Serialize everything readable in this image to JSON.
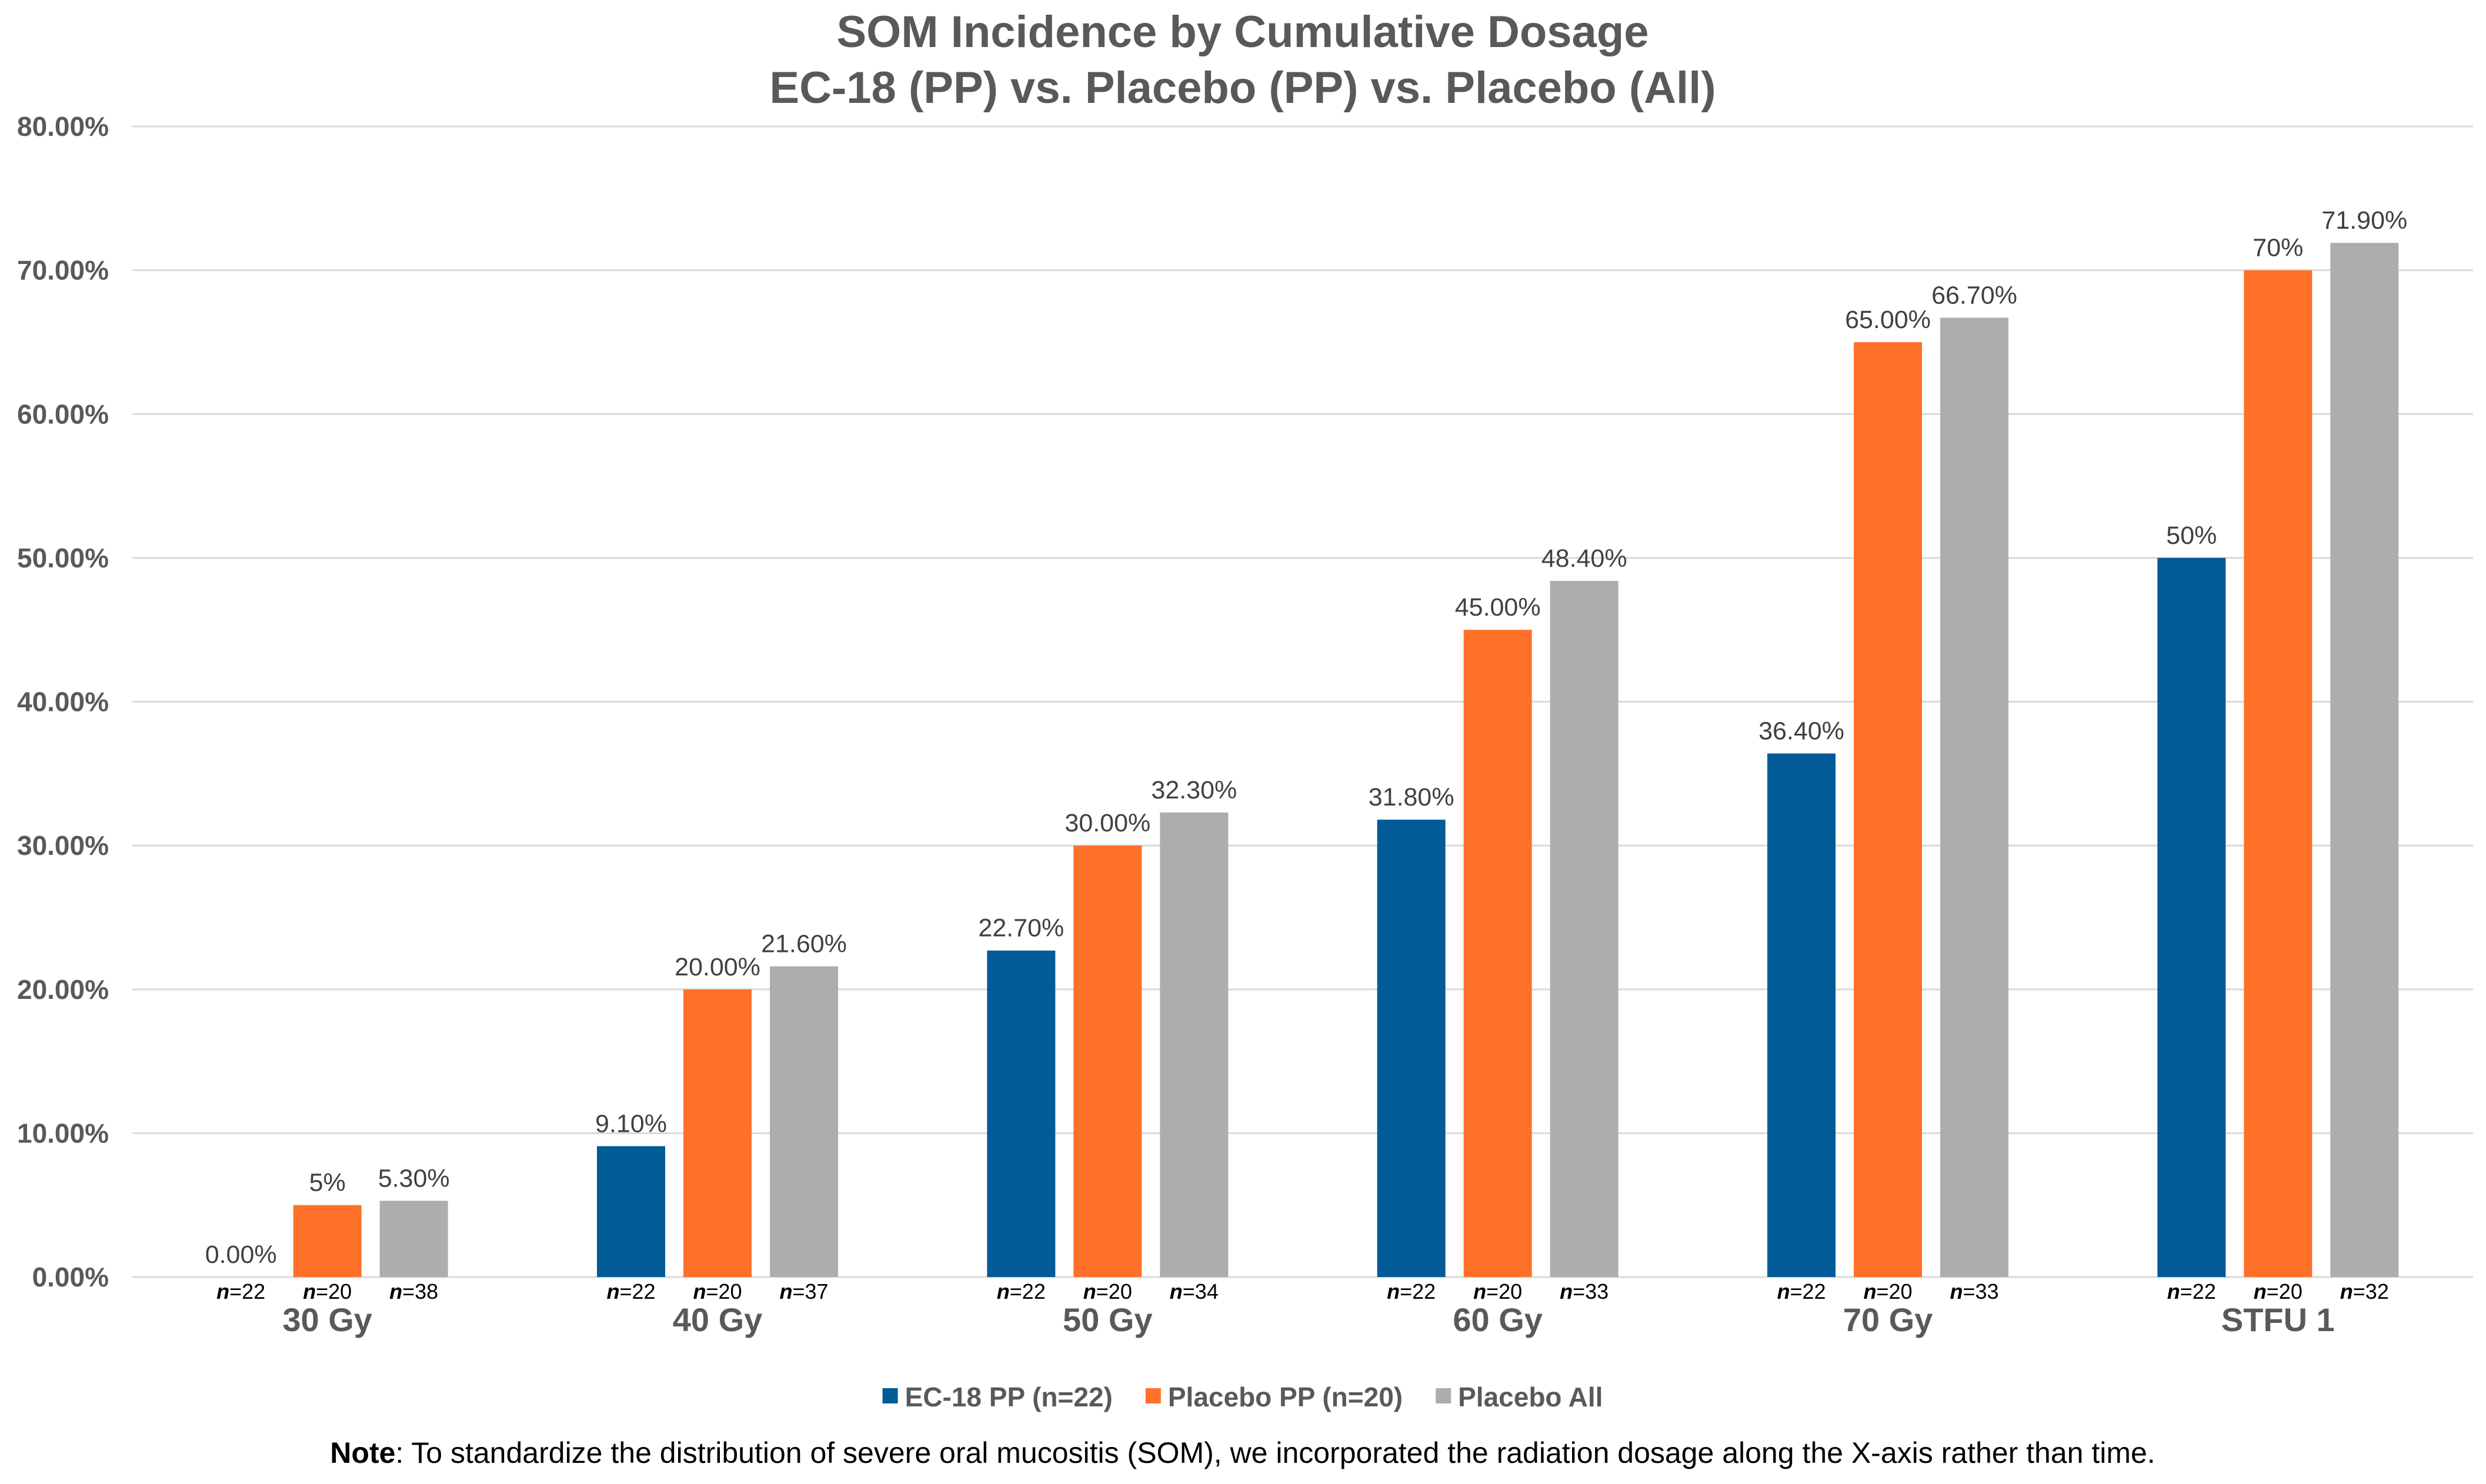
{
  "chart_data": {
    "type": "bar",
    "title_lines": [
      "SOM Incidence by Cumulative Dosage",
      "EC-18 (PP) vs. Placebo (PP) vs. Placebo (All)"
    ],
    "categories": [
      "30 Gy",
      "40 Gy",
      "50 Gy",
      "60 Gy",
      "70 Gy",
      "STFU 1"
    ],
    "series": [
      {
        "name": "EC-18 PP (n=22)",
        "color": "#005b96",
        "values": [
          0.0,
          9.1,
          22.7,
          31.8,
          36.4,
          50.0
        ],
        "labels": [
          "0.00%",
          "9.10%",
          "22.70%",
          "31.80%",
          "36.40%",
          "50%"
        ],
        "n_labels": [
          "22",
          "22",
          "22",
          "22",
          "22",
          "22"
        ]
      },
      {
        "name": "Placebo PP (n=20)",
        "color": "#ff7028",
        "values": [
          5.0,
          20.0,
          30.0,
          45.0,
          65.0,
          70.0
        ],
        "labels": [
          "5%",
          "20.00%",
          "30.00%",
          "45.00%",
          "65.00%",
          "70%"
        ],
        "n_labels": [
          "20",
          "20",
          "20",
          "20",
          "20",
          "20"
        ]
      },
      {
        "name": "Placebo All",
        "color": "#adadad",
        "values": [
          5.3,
          21.6,
          32.3,
          48.4,
          66.7,
          71.9
        ],
        "labels": [
          "5.30%",
          "21.60%",
          "32.30%",
          "48.40%",
          "66.70%",
          "71.90%"
        ],
        "n_labels": [
          "38",
          "37",
          "34",
          "33",
          "33",
          "32"
        ]
      }
    ],
    "n_prefix": "n",
    "n_separator": "=",
    "yticks": [
      0,
      10,
      20,
      30,
      40,
      50,
      60,
      70,
      80
    ],
    "ytick_labels": [
      "0.00%",
      "10.00%",
      "20.00%",
      "30.00%",
      "40.00%",
      "50.00%",
      "60.00%",
      "70.00%",
      "80.00%"
    ],
    "ylim": [
      0,
      80
    ],
    "xlabel": "",
    "ylabel": "",
    "grid": true,
    "legend_position": "bottom-center"
  },
  "note": {
    "bold": "Note",
    "text": ": To standardize the distribution of severe oral mucositis (SOM), we incorporated the radiation dosage along the X-axis rather than time."
  },
  "colors": {
    "title": "#595959",
    "grid": "#d9d9d9",
    "label": "#404040"
  }
}
